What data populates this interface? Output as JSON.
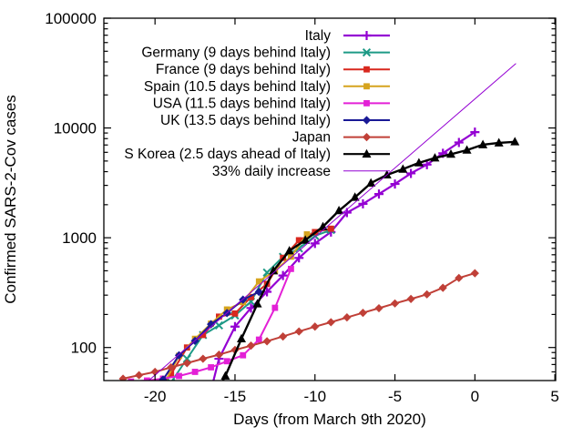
{
  "chart_data": {
    "type": "line",
    "title": "",
    "xlabel": "Days (from March 9th 2020)",
    "ylabel": "Confirmed SARS-2-Cov cases",
    "grid": false,
    "legend_position": "inside-top-center",
    "x_axis": {
      "min": -23.2,
      "max": 5.05,
      "major_ticks": [
        -20,
        -15,
        -10,
        -5,
        0,
        5
      ],
      "tick_labels": [
        "-20",
        "-15",
        "-10",
        "-5",
        "0",
        "5"
      ]
    },
    "y_axis": {
      "scale": "log",
      "min": 50,
      "max": 100000,
      "major_ticks": [
        100,
        1000,
        10000,
        100000
      ],
      "tick_labels": [
        "100",
        "1000",
        "10000",
        "100000"
      ]
    },
    "series": [
      {
        "name": "Italy",
        "color": "#9400D3",
        "marker": "plus",
        "line_width": 2.2,
        "points": [
          [
            -17,
            21
          ],
          [
            -16,
            79
          ],
          [
            -15,
            155
          ],
          [
            -14,
            229
          ],
          [
            -13,
            322
          ],
          [
            -12,
            453
          ],
          [
            -11,
            655
          ],
          [
            -10,
            888
          ],
          [
            -9,
            1128
          ],
          [
            -8,
            1694
          ],
          [
            -7,
            2036
          ],
          [
            -6,
            2502
          ],
          [
            -5,
            3089
          ],
          [
            -4,
            3858
          ],
          [
            -3,
            4636
          ],
          [
            -2,
            5883
          ],
          [
            -1,
            7375
          ],
          [
            0,
            9172
          ]
        ]
      },
      {
        "name": "Germany (9 days behind Italy)",
        "color": "#1D9A86",
        "marker": "cross",
        "line_width": 2,
        "points": [
          [
            -21,
            27
          ],
          [
            -20,
            46
          ],
          [
            -19,
            48
          ],
          [
            -18,
            79
          ],
          [
            -17,
            130
          ],
          [
            -16,
            159
          ],
          [
            -15,
            196
          ],
          [
            -14,
            262
          ],
          [
            -13,
            482
          ],
          [
            -12,
            670
          ],
          [
            -11,
            799
          ],
          [
            -10,
            1040
          ],
          [
            -9,
            1176
          ]
        ]
      },
      {
        "name": "France (9 days behind Italy)",
        "color": "#D8281E",
        "marker": "square",
        "line_width": 2,
        "points": [
          [
            -21,
            18
          ],
          [
            -20,
            38
          ],
          [
            -19,
            57
          ],
          [
            -18,
            100
          ],
          [
            -17,
            130
          ],
          [
            -16,
            191
          ],
          [
            -15,
            204
          ],
          [
            -14,
            288
          ],
          [
            -13,
            380
          ],
          [
            -12,
            656
          ],
          [
            -11,
            949
          ],
          [
            -10,
            1126
          ],
          [
            -9,
            1209
          ]
        ]
      },
      {
        "name": "Spain (10.5 days behind Italy)",
        "color": "#D6A41E",
        "marker": "square",
        "line_width": 2,
        "points": [
          [
            -20.5,
            32
          ],
          [
            -19.5,
            45
          ],
          [
            -18.5,
            84
          ],
          [
            -17.5,
            120
          ],
          [
            -16.5,
            165
          ],
          [
            -15.5,
            222
          ],
          [
            -14.5,
            259
          ],
          [
            -13.5,
            400
          ],
          [
            -12.5,
            500
          ],
          [
            -11.5,
            673
          ],
          [
            -10.5,
            1073
          ]
        ]
      },
      {
        "name": "USA (11.5 days behind Italy)",
        "color": "#E320D6",
        "marker": "square",
        "line_width": 2,
        "points": [
          [
            -21.5,
            49
          ],
          [
            -20.5,
            50
          ],
          [
            -19.5,
            52
          ],
          [
            -18.5,
            55
          ],
          [
            -17.5,
            60
          ],
          [
            -16.5,
            66
          ],
          [
            -15.5,
            75
          ],
          [
            -14.5,
            85
          ],
          [
            -13.5,
            118
          ],
          [
            -12.5,
            230
          ],
          [
            -11.5,
            520
          ]
        ]
      },
      {
        "name": "UK (13.5 days behind Italy)",
        "color": "#191996",
        "marker": "diamond",
        "line_width": 2,
        "points": [
          [
            -20.5,
            40
          ],
          [
            -19.5,
            51
          ],
          [
            -18.5,
            85
          ],
          [
            -17.5,
            115
          ],
          [
            -16.5,
            163
          ],
          [
            -15.5,
            206
          ],
          [
            -14.5,
            273
          ],
          [
            -13.5,
            321
          ]
        ]
      },
      {
        "name": "Japan",
        "color": "#C04038",
        "marker": "diamond",
        "line_width": 2,
        "points": [
          [
            -22,
            52
          ],
          [
            -21,
            56
          ],
          [
            -20,
            60
          ],
          [
            -19,
            66
          ],
          [
            -18,
            72
          ],
          [
            -17,
            79
          ],
          [
            -16,
            86
          ],
          [
            -15,
            95
          ],
          [
            -14,
            104
          ],
          [
            -13,
            114
          ],
          [
            -12,
            126
          ],
          [
            -11,
            140
          ],
          [
            -10,
            155
          ],
          [
            -9,
            170
          ],
          [
            -8,
            188
          ],
          [
            -7,
            207
          ],
          [
            -6,
            228
          ],
          [
            -5,
            252
          ],
          [
            -4,
            277
          ],
          [
            -3,
            305
          ],
          [
            -2,
            350
          ],
          [
            -1,
            430
          ],
          [
            0,
            475
          ]
        ]
      },
      {
        "name": "S Korea (2.5 days ahead of Italy)",
        "color": "#000000",
        "marker": "triangle",
        "line_width": 2.4,
        "points": [
          [
            -16.6,
            30
          ],
          [
            -15.6,
            55
          ],
          [
            -14.6,
            120
          ],
          [
            -13.6,
            250
          ],
          [
            -12.6,
            500
          ],
          [
            -11.6,
            760
          ],
          [
            -10.6,
            950
          ],
          [
            -9.5,
            1261
          ],
          [
            -8.5,
            1766
          ],
          [
            -7.5,
            2337
          ],
          [
            -6.5,
            3150
          ],
          [
            -5.5,
            3736
          ],
          [
            -4.5,
            4212
          ],
          [
            -3.5,
            4812
          ],
          [
            -2.5,
            5328
          ],
          [
            -1.5,
            5766
          ],
          [
            -0.5,
            6284
          ],
          [
            0.5,
            7041
          ],
          [
            1.5,
            7314
          ],
          [
            2.5,
            7478
          ]
        ]
      },
      {
        "name": "33% daily increase",
        "color": "#9400D3",
        "marker": "none",
        "line_width": 1,
        "points": [
          [
            -20.4,
            50
          ],
          [
            2.55,
            38500
          ]
        ]
      }
    ]
  }
}
